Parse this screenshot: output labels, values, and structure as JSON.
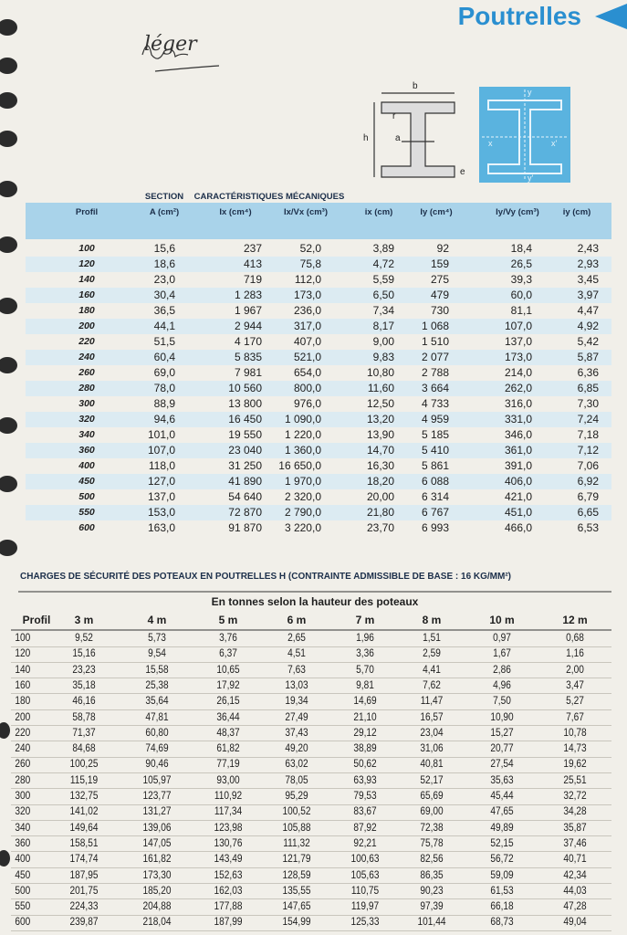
{
  "header": {
    "title": "Poutrelles",
    "handwritten_note": "léger"
  },
  "diagram": {
    "profile_labels": [
      "b",
      "h",
      "r",
      "a",
      "e"
    ],
    "axis_labels": [
      "y",
      "x",
      "x'",
      "y'"
    ]
  },
  "table1": {
    "section_header": "SECTION",
    "group_header": "CARACTÉRISTIQUES MÉCANIQUES",
    "columns": [
      "Profil",
      "A (cm²)",
      "Ix (cm⁴)",
      "Ix/Vx (cm³)",
      "ix (cm)",
      "Iy (cm⁴)",
      "Iy/Vy (cm³)",
      "iy (cm)"
    ],
    "rows": [
      [
        "100",
        "15,6",
        "237",
        "52,0",
        "3,89",
        "92",
        "18,4",
        "2,43"
      ],
      [
        "120",
        "18,6",
        "413",
        "75,8",
        "4,72",
        "159",
        "26,5",
        "2,93"
      ],
      [
        "140",
        "23,0",
        "719",
        "112,0",
        "5,59",
        "275",
        "39,3",
        "3,45"
      ],
      [
        "160",
        "30,4",
        "1 283",
        "173,0",
        "6,50",
        "479",
        "60,0",
        "3,97"
      ],
      [
        "180",
        "36,5",
        "1 967",
        "236,0",
        "7,34",
        "730",
        "81,1",
        "4,47"
      ],
      [
        "200",
        "44,1",
        "2 944",
        "317,0",
        "8,17",
        "1 068",
        "107,0",
        "4,92"
      ],
      [
        "220",
        "51,5",
        "4 170",
        "407,0",
        "9,00",
        "1 510",
        "137,0",
        "5,42"
      ],
      [
        "240",
        "60,4",
        "5 835",
        "521,0",
        "9,83",
        "2 077",
        "173,0",
        "5,87"
      ],
      [
        "260",
        "69,0",
        "7 981",
        "654,0",
        "10,80",
        "2 788",
        "214,0",
        "6,36"
      ],
      [
        "280",
        "78,0",
        "10 560",
        "800,0",
        "11,60",
        "3 664",
        "262,0",
        "6,85"
      ],
      [
        "300",
        "88,9",
        "13 800",
        "976,0",
        "12,50",
        "4 733",
        "316,0",
        "7,30"
      ],
      [
        "320",
        "94,6",
        "16 450",
        "1 090,0",
        "13,20",
        "4 959",
        "331,0",
        "7,24"
      ],
      [
        "340",
        "101,0",
        "19 550",
        "1 220,0",
        "13,90",
        "5 185",
        "346,0",
        "7,18"
      ],
      [
        "360",
        "107,0",
        "23 040",
        "1 360,0",
        "14,70",
        "5 410",
        "361,0",
        "7,12"
      ],
      [
        "400",
        "118,0",
        "31 250",
        "16 650,0",
        "16,30",
        "5 861",
        "391,0",
        "7,06"
      ],
      [
        "450",
        "127,0",
        "41 890",
        "1 970,0",
        "18,20",
        "6 088",
        "406,0",
        "6,92"
      ],
      [
        "500",
        "137,0",
        "54 640",
        "2 320,0",
        "20,00",
        "6 314",
        "421,0",
        "6,79"
      ],
      [
        "550",
        "153,0",
        "72 870",
        "2 790,0",
        "21,80",
        "6 767",
        "451,0",
        "6,65"
      ],
      [
        "600",
        "163,0",
        "91 870",
        "3 220,0",
        "23,70",
        "6 993",
        "466,0",
        "6,53"
      ]
    ]
  },
  "table2": {
    "title": "CHARGES DE SÉCURITÉ DES POTEAUX EN POUTRELLES H (CONTRAINTE ADMISSIBLE DE BASE : 16 KG/MM²)",
    "subtitle": "En tonnes selon la hauteur des poteaux",
    "columns": [
      "Profil",
      "3 m",
      "4 m",
      "5 m",
      "6 m",
      "7 m",
      "8 m",
      "10 m",
      "12 m"
    ],
    "rows": [
      [
        "100",
        "9,52",
        "5,73",
        "3,76",
        "2,65",
        "1,96",
        "1,51",
        "0,97",
        "0,68"
      ],
      [
        "120",
        "15,16",
        "9,54",
        "6,37",
        "4,51",
        "3,36",
        "2,59",
        "1,67",
        "1,16"
      ],
      [
        "140",
        "23,23",
        "15,58",
        "10,65",
        "7,63",
        "5,70",
        "4,41",
        "2,86",
        "2,00"
      ],
      [
        "160",
        "35,18",
        "25,38",
        "17,92",
        "13,03",
        "9,81",
        "7,62",
        "4,96",
        "3,47"
      ],
      [
        "180",
        "46,16",
        "35,64",
        "26,15",
        "19,34",
        "14,69",
        "11,47",
        "7,50",
        "5,27"
      ],
      [
        "200",
        "58,78",
        "47,81",
        "36,44",
        "27,49",
        "21,10",
        "16,57",
        "10,90",
        "7,67"
      ],
      [
        "220",
        "71,37",
        "60,80",
        "48,37",
        "37,43",
        "29,12",
        "23,04",
        "15,27",
        "10,78"
      ],
      [
        "240",
        "84,68",
        "74,69",
        "61,82",
        "49,20",
        "38,89",
        "31,06",
        "20,77",
        "14,73"
      ],
      [
        "260",
        "100,25",
        "90,46",
        "77,19",
        "63,02",
        "50,62",
        "40,81",
        "27,54",
        "19,62"
      ],
      [
        "280",
        "115,19",
        "105,97",
        "93,00",
        "78,05",
        "63,93",
        "52,17",
        "35,63",
        "25,51"
      ],
      [
        "300",
        "132,75",
        "123,77",
        "110,92",
        "95,29",
        "79,53",
        "65,69",
        "45,44",
        "32,72"
      ],
      [
        "320",
        "141,02",
        "131,27",
        "117,34",
        "100,52",
        "83,67",
        "69,00",
        "47,65",
        "34,28"
      ],
      [
        "340",
        "149,64",
        "139,06",
        "123,98",
        "105,88",
        "87,92",
        "72,38",
        "49,89",
        "35,87"
      ],
      [
        "360",
        "158,51",
        "147,05",
        "130,76",
        "111,32",
        "92,21",
        "75,78",
        "52,15",
        "37,46"
      ],
      [
        "400",
        "174,74",
        "161,82",
        "143,49",
        "121,79",
        "100,63",
        "82,56",
        "56,72",
        "40,71"
      ],
      [
        "450",
        "187,95",
        "173,30",
        "152,63",
        "128,59",
        "105,63",
        "86,35",
        "59,09",
        "42,34"
      ],
      [
        "500",
        "201,75",
        "185,20",
        "162,03",
        "135,55",
        "110,75",
        "90,23",
        "61,53",
        "44,03"
      ],
      [
        "550",
        "224,33",
        "204,88",
        "177,88",
        "147,65",
        "119,97",
        "97,39",
        "66,18",
        "47,28"
      ],
      [
        "600",
        "239,87",
        "218,04",
        "187,99",
        "154,99",
        "125,33",
        "101,44",
        "68,73",
        "49,04"
      ]
    ]
  }
}
